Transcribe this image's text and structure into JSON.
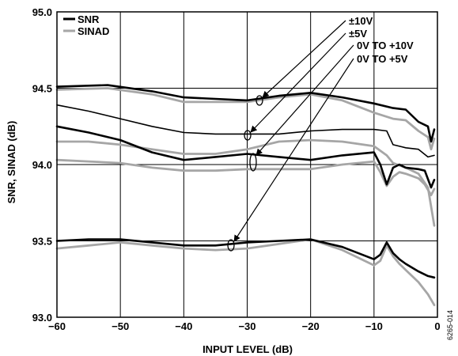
{
  "chart_data": {
    "type": "line",
    "xlabel": "INPUT LEVEL (dB)",
    "ylabel": "SNR, SINAD (dB)",
    "xlim": [
      -60,
      0
    ],
    "ylim": [
      93.0,
      95.0
    ],
    "xticks": [
      "−60",
      "−50",
      "−40",
      "−30",
      "−20",
      "−10",
      "0"
    ],
    "yticks": [
      "93.0",
      "93.5",
      "94.0",
      "94.5",
      "95.0"
    ],
    "grid": true,
    "legend": {
      "placement": "top-left",
      "entries": [
        {
          "label": "SNR",
          "color": "#000000"
        },
        {
          "label": "SINAD",
          "color": "#a6a6a6"
        }
      ]
    },
    "annotations": [
      "±10V",
      "±5V",
      "0V TO +10V",
      "0V TO +5V"
    ],
    "figure_id": "6265-014",
    "series": [
      {
        "range": "±10V",
        "metric": "SNR",
        "color": "#000000",
        "x": [
          -60,
          -52,
          -45,
          -40,
          -35,
          -30,
          -25,
          -20,
          -15,
          -10,
          -7,
          -5,
          -3,
          -1.5,
          -1,
          -0.5
        ],
        "y": [
          94.51,
          94.52,
          94.48,
          94.44,
          94.43,
          94.42,
          94.45,
          94.47,
          94.44,
          94.4,
          94.37,
          94.36,
          94.28,
          94.25,
          94.15,
          94.23
        ]
      },
      {
        "range": "±10V",
        "metric": "SINAD",
        "color": "#a6a6a6",
        "x": [
          -60,
          -52,
          -45,
          -40,
          -35,
          -30,
          -25,
          -20,
          -15,
          -10,
          -7,
          -5,
          -3,
          -1.5,
          -1,
          -0.5
        ],
        "y": [
          94.49,
          94.5,
          94.46,
          94.41,
          94.41,
          94.41,
          94.44,
          94.46,
          94.42,
          94.34,
          94.3,
          94.29,
          94.22,
          94.18,
          94.1,
          94.17
        ]
      },
      {
        "range": "±5V",
        "metric": "SNR",
        "color": "#000000",
        "x": [
          -60,
          -55,
          -50,
          -45,
          -40,
          -35,
          -30,
          -25,
          -20,
          -15,
          -10,
          -8,
          -7,
          -5,
          -3,
          -1.5,
          -0.5
        ],
        "y": [
          94.39,
          94.35,
          94.3,
          94.25,
          94.21,
          94.2,
          94.2,
          94.2,
          94.22,
          94.23,
          94.23,
          94.22,
          94.13,
          94.11,
          94.1,
          94.05,
          94.06
        ]
      },
      {
        "range": "±5V",
        "metric": "SINAD",
        "color": "#a6a6a6",
        "x": [
          -60,
          -55,
          -50,
          -45,
          -40,
          -35,
          -30,
          -25,
          -20,
          -15,
          -10,
          -8,
          -7,
          -5,
          -3,
          -1.5,
          -0.5
        ],
        "y": [
          94.15,
          94.15,
          94.13,
          94.1,
          94.07,
          94.07,
          94.1,
          94.15,
          94.16,
          94.15,
          94.12,
          94.06,
          94.01,
          93.98,
          93.94,
          93.85,
          93.6
        ]
      },
      {
        "range": "0V TO +10V",
        "metric": "SNR",
        "color": "#000000",
        "x": [
          -60,
          -55,
          -50,
          -45,
          -40,
          -35,
          -30,
          -25,
          -20,
          -15,
          -10,
          -9,
          -8,
          -7,
          -6,
          -5,
          -3,
          -2,
          -1,
          -0.5
        ],
        "y": [
          94.25,
          94.21,
          94.16,
          94.08,
          94.03,
          94.05,
          94.07,
          94.05,
          94.03,
          94.06,
          94.08,
          94.0,
          93.87,
          93.98,
          94.0,
          93.98,
          93.97,
          93.96,
          93.85,
          93.9
        ]
      },
      {
        "range": "0V TO +10V",
        "metric": "SINAD",
        "color": "#a6a6a6",
        "x": [
          -60,
          -55,
          -50,
          -45,
          -40,
          -35,
          -30,
          -25,
          -20,
          -15,
          -10,
          -9,
          -8,
          -7,
          -6,
          -5,
          -3,
          -2,
          -1,
          -0.5
        ],
        "y": [
          94.03,
          94.02,
          94.01,
          93.98,
          93.96,
          93.96,
          93.97,
          93.97,
          93.97,
          94.0,
          94.02,
          93.95,
          93.86,
          93.92,
          93.95,
          93.94,
          93.91,
          93.87,
          93.8,
          93.84
        ]
      },
      {
        "range": "0V TO +5V",
        "metric": "SNR",
        "color": "#000000",
        "x": [
          -60,
          -55,
          -50,
          -45,
          -40,
          -35,
          -30,
          -25,
          -20,
          -15,
          -10,
          -9,
          -8,
          -7,
          -6,
          -5,
          -3,
          -1.5,
          -0.5
        ],
        "y": [
          93.5,
          93.51,
          93.51,
          93.49,
          93.47,
          93.47,
          93.49,
          93.5,
          93.51,
          93.46,
          93.38,
          93.41,
          93.49,
          93.42,
          93.38,
          93.35,
          93.3,
          93.27,
          93.26
        ]
      },
      {
        "range": "0V TO +5V",
        "metric": "SINAD",
        "color": "#a6a6a6",
        "x": [
          -60,
          -55,
          -50,
          -45,
          -40,
          -35,
          -30,
          -25,
          -20,
          -15,
          -10,
          -9,
          -8,
          -7,
          -6,
          -5,
          -3,
          -1.5,
          -0.5
        ],
        "y": [
          93.45,
          93.47,
          93.49,
          93.47,
          93.45,
          93.44,
          93.45,
          93.48,
          93.51,
          93.44,
          93.34,
          93.37,
          93.47,
          93.4,
          93.35,
          93.31,
          93.23,
          93.15,
          93.08
        ]
      }
    ]
  }
}
